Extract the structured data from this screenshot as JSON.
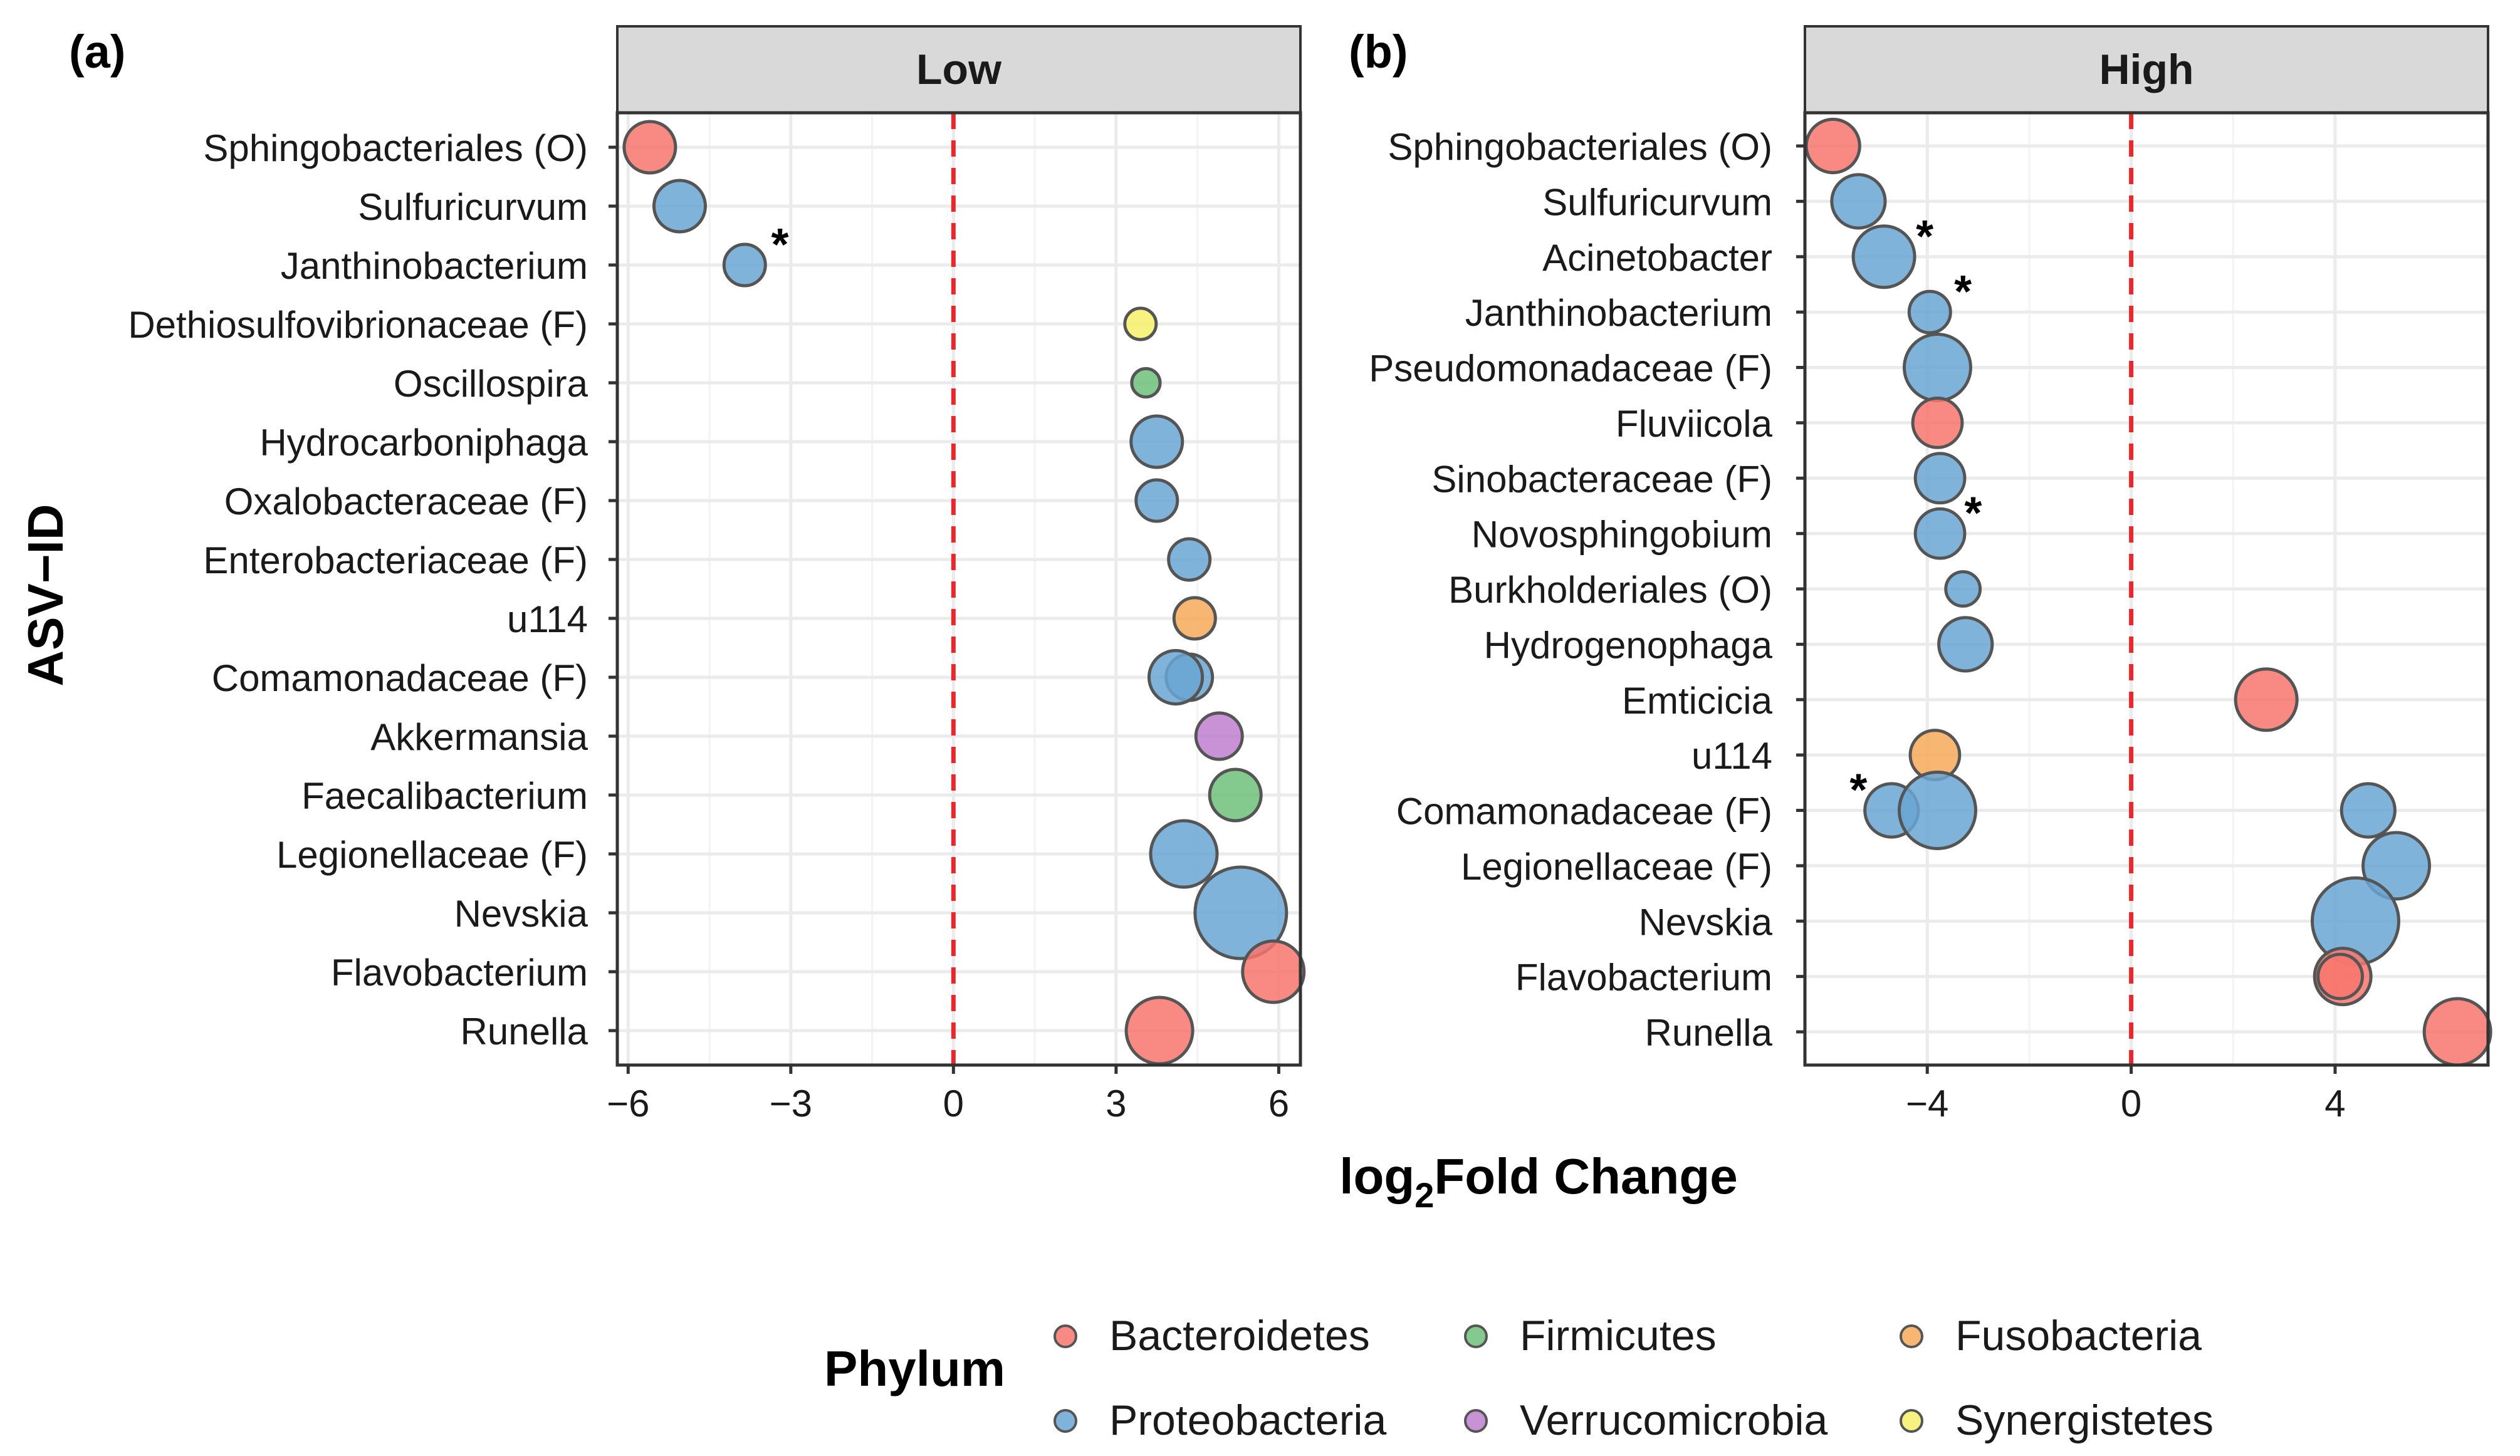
{
  "figure": {
    "y_axis_title": "ASV−ID",
    "x_axis_title_main": "log",
    "x_axis_title_sub": "2",
    "x_axis_title_rest": "Fold Change"
  },
  "colors": {
    "Bacteroidetes": "#f8766d",
    "Proteobacteria": "#6aa6d4",
    "Firmicutes": "#6ec07a",
    "Verrucomicrobia": "#c07fd0",
    "Fusobacteria": "#f7a95a",
    "Synergistetes": "#f7f06a",
    "zero_line": "#e8282c",
    "strip_fill": "#d9d9d9",
    "grid": "#ebebeb"
  },
  "legend": {
    "title": "Phylum",
    "entries": [
      {
        "label": "Bacteroidetes",
        "color": "#f8766d"
      },
      {
        "label": "Firmicutes",
        "color": "#6ec07a"
      },
      {
        "label": "Fusobacteria",
        "color": "#f7a95a"
      },
      {
        "label": "Proteobacteria",
        "color": "#6aa6d4"
      },
      {
        "label": "Verrucomicrobia",
        "color": "#c07fd0"
      },
      {
        "label": "Synergistetes",
        "color": "#f7f06a"
      }
    ]
  },
  "chart_data": [
    {
      "type": "scatter",
      "panel_label": "(a)",
      "strip_title": "Low",
      "xlim": [
        -6.2,
        6.4
      ],
      "xticks": [
        -6,
        -3,
        0,
        3,
        6
      ],
      "xtick_labels": [
        "−6",
        "−3",
        "0",
        "3",
        "6"
      ],
      "categories": [
        "Sphingobacteriales (O)",
        "Sulfuricurvum",
        "Janthinobacterium",
        "Dethiosulfovibrionaceae (F)",
        "Oscillospira",
        "Hydrocarboniphaga",
        "Oxalobacteraceae (F)",
        "Enterobacteriaceae (F)",
        "u114",
        "Comamonadaceae (F)",
        "Akkermansia",
        "Faecalibacterium",
        "Legionellaceae (F)",
        "Nevskia",
        "Flavobacterium",
        "Runella"
      ],
      "points": [
        {
          "category": "Sphingobacteriales (O)",
          "x": -5.6,
          "size": 3,
          "phylum": "Bacteroidetes"
        },
        {
          "category": "Sulfuricurvum",
          "x": -5.05,
          "size": 3,
          "phylum": "Proteobacteria"
        },
        {
          "category": "Janthinobacterium",
          "x": -3.85,
          "size": 2,
          "phylum": "Proteobacteria"
        },
        {
          "category": "Dethiosulfovibrionaceae (F)",
          "x": 3.45,
          "size": 1,
          "phylum": "Synergistetes"
        },
        {
          "category": "Oscillospira",
          "x": 3.55,
          "size": 0.7,
          "phylum": "Firmicutes"
        },
        {
          "category": "Hydrocarboniphaga",
          "x": 3.75,
          "size": 3,
          "phylum": "Proteobacteria"
        },
        {
          "category": "Oxalobacteraceae (F)",
          "x": 3.75,
          "size": 2,
          "phylum": "Proteobacteria"
        },
        {
          "category": "Enterobacteriaceae (F)",
          "x": 4.35,
          "size": 2,
          "phylum": "Proteobacteria"
        },
        {
          "category": "u114",
          "x": 4.45,
          "size": 2,
          "phylum": "Fusobacteria"
        },
        {
          "category": "Comamonadaceae (F)",
          "x": 4.35,
          "size": 2.5,
          "phylum": "Proteobacteria"
        },
        {
          "category": "Comamonadaceae (F)",
          "x": 4.1,
          "size": 3.2,
          "phylum": "Proteobacteria"
        },
        {
          "category": "Akkermansia",
          "x": 4.9,
          "size": 2.5,
          "phylum": "Verrucomicrobia"
        },
        {
          "category": "Faecalibacterium",
          "x": 5.2,
          "size": 3,
          "phylum": "Firmicutes"
        },
        {
          "category": "Legionellaceae (F)",
          "x": 4.25,
          "size": 4.5,
          "phylum": "Proteobacteria"
        },
        {
          "category": "Nevskia",
          "x": 5.3,
          "size": 7,
          "phylum": "Proteobacteria"
        },
        {
          "category": "Flavobacterium",
          "x": 5.9,
          "size": 4,
          "phylum": "Bacteroidetes"
        },
        {
          "category": "Runella",
          "x": 3.8,
          "size": 4.5,
          "phylum": "Bacteroidetes"
        }
      ],
      "annotations": [
        {
          "text": "*",
          "category": "Janthinobacterium",
          "x": -3.2
        }
      ]
    },
    {
      "type": "scatter",
      "panel_label": "(b)",
      "strip_title": "High",
      "xlim": [
        -6.4,
        7.0
      ],
      "xticks": [
        -4,
        0,
        4
      ],
      "xtick_labels": [
        "−4",
        "0",
        "4"
      ],
      "categories": [
        "Sphingobacteriales (O)",
        "Sulfuricurvum",
        "Acinetobacter",
        "Janthinobacterium",
        "Pseudomonadaceae (F)",
        "Fluviicola",
        "Sinobacteraceae (F)",
        "Novosphingobium",
        "Burkholderiales (O)",
        "Hydrogenophaga",
        "Emticicia",
        "u114",
        "Comamonadaceae (F)",
        "Legionellaceae (F)",
        "Nevskia",
        "Flavobacterium",
        "Runella"
      ],
      "points": [
        {
          "category": "Sphingobacteriales (O)",
          "x": -5.85,
          "size": 3.2,
          "phylum": "Bacteroidetes"
        },
        {
          "category": "Sulfuricurvum",
          "x": -5.35,
          "size": 3.2,
          "phylum": "Proteobacteria"
        },
        {
          "category": "Acinetobacter",
          "x": -4.85,
          "size": 4,
          "phylum": "Proteobacteria"
        },
        {
          "category": "Janthinobacterium",
          "x": -3.95,
          "size": 2,
          "phylum": "Proteobacteria"
        },
        {
          "category": "Pseudomonadaceae (F)",
          "x": -3.8,
          "size": 4.5,
          "phylum": "Proteobacteria"
        },
        {
          "category": "Fluviicola",
          "x": -3.8,
          "size": 2.8,
          "phylum": "Bacteroidetes"
        },
        {
          "category": "Sinobacteraceae (F)",
          "x": -3.75,
          "size": 2.8,
          "phylum": "Proteobacteria"
        },
        {
          "category": "Novosphingobium",
          "x": -3.75,
          "size": 2.8,
          "phylum": "Proteobacteria"
        },
        {
          "category": "Burkholderiales (O)",
          "x": -3.3,
          "size": 1.3,
          "phylum": "Proteobacteria"
        },
        {
          "category": "Hydrogenophaga",
          "x": -3.25,
          "size": 3.2,
          "phylum": "Proteobacteria"
        },
        {
          "category": "Emticicia",
          "x": 2.65,
          "size": 4,
          "phylum": "Bacteroidetes"
        },
        {
          "category": "u114",
          "x": -3.85,
          "size": 2.8,
          "phylum": "Fusobacteria"
        },
        {
          "category": "Comamonadaceae (F)",
          "x": -4.7,
          "size": 3.2,
          "phylum": "Proteobacteria"
        },
        {
          "category": "Comamonadaceae (F)",
          "x": -3.8,
          "size": 5.5,
          "phylum": "Proteobacteria"
        },
        {
          "category": "Comamonadaceae (F)",
          "x": 4.65,
          "size": 3.2,
          "phylum": "Proteobacteria"
        },
        {
          "category": "Legionellaceae (F)",
          "x": 5.2,
          "size": 4.5,
          "phylum": "Proteobacteria"
        },
        {
          "category": "Nevskia",
          "x": 4.4,
          "size": 6.5,
          "phylum": "Proteobacteria"
        },
        {
          "category": "Flavobacterium",
          "x": 4.15,
          "size": 3.5,
          "phylum": "Bacteroidetes"
        },
        {
          "category": "Flavobacterium",
          "x": 4.1,
          "size": 2.3,
          "phylum": "Bacteroidetes"
        },
        {
          "category": "Runella",
          "x": 6.4,
          "size": 4.5,
          "phylum": "Bacteroidetes"
        }
      ],
      "annotations": [
        {
          "text": "*",
          "category": "Acinetobacter",
          "x": -4.05
        },
        {
          "text": "*",
          "category": "Janthinobacterium",
          "x": -3.3
        },
        {
          "text": "*",
          "category": "Novosphingobium",
          "x": -3.1
        },
        {
          "text": "*",
          "category": "Comamonadaceae (F)",
          "x": -5.35
        }
      ]
    }
  ]
}
